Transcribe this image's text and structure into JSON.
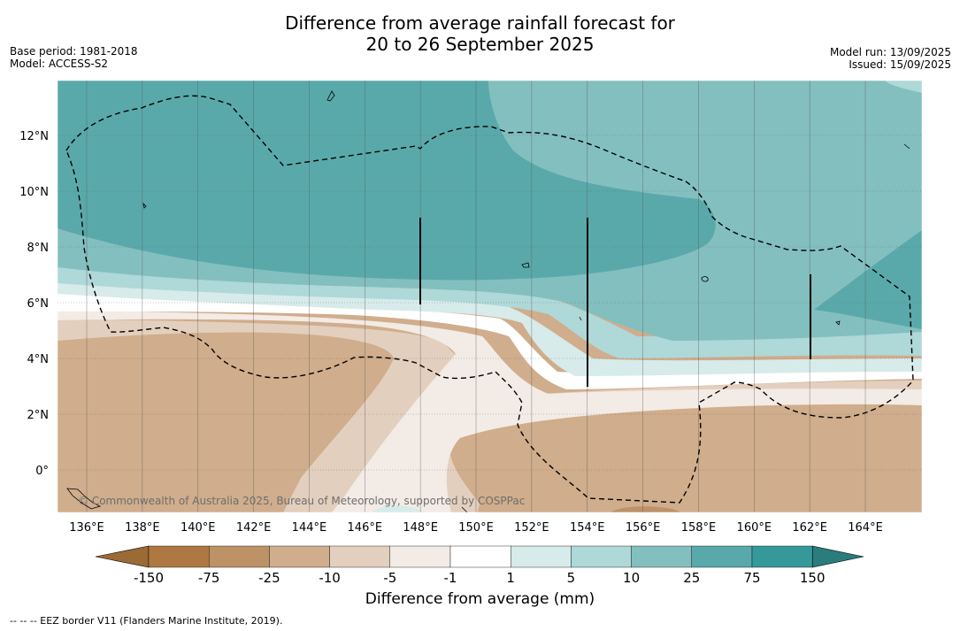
{
  "header": {
    "title_line1": "Difference from average rainfall forecast for",
    "title_line2": "20 to 26 September 2025",
    "base_period": "Base period: 1981-2018",
    "model": "Model: ACCESS-S2",
    "model_run": "Model run: 13/09/2025",
    "issued": "Issued: 15/09/2025"
  },
  "map": {
    "lon_labels": [
      "136°E",
      "138°E",
      "140°E",
      "142°E",
      "144°E",
      "146°E",
      "148°E",
      "150°E",
      "152°E",
      "154°E",
      "156°E",
      "158°E",
      "160°E",
      "162°E",
      "164°E"
    ],
    "lon_values": [
      136,
      138,
      140,
      142,
      144,
      146,
      148,
      150,
      152,
      154,
      156,
      158,
      160,
      162,
      164
    ],
    "lat_labels": [
      "12°N",
      "10°N",
      "8°N",
      "6°N",
      "4°N",
      "2°N",
      "0°"
    ],
    "lat_values": [
      12,
      10,
      8,
      6,
      4,
      2,
      0
    ],
    "copyright": "© Commonwealth of Australia 2025, Bureau of Meteorology, supported by COSPPac"
  },
  "colorbar": {
    "labels": [
      "-150",
      "-75",
      "-25",
      "-10",
      "-5",
      "-1",
      "1",
      "5",
      "10",
      "25",
      "75",
      "150"
    ],
    "colors": [
      "#9b6a35",
      "#ad7841",
      "#bd9267",
      "#d0ad8c",
      "#e3cfbd",
      "#f3ebe5",
      "#ffffff",
      "#d6ebea",
      "#afd8d8",
      "#84bfbf",
      "#5aa9aa",
      "#35999a",
      "#2a7c7d"
    ],
    "title": "Difference from average (mm)"
  },
  "footnote": "--  --  -- EEZ border V11 (Flanders Marine Institute, 2019)."
}
